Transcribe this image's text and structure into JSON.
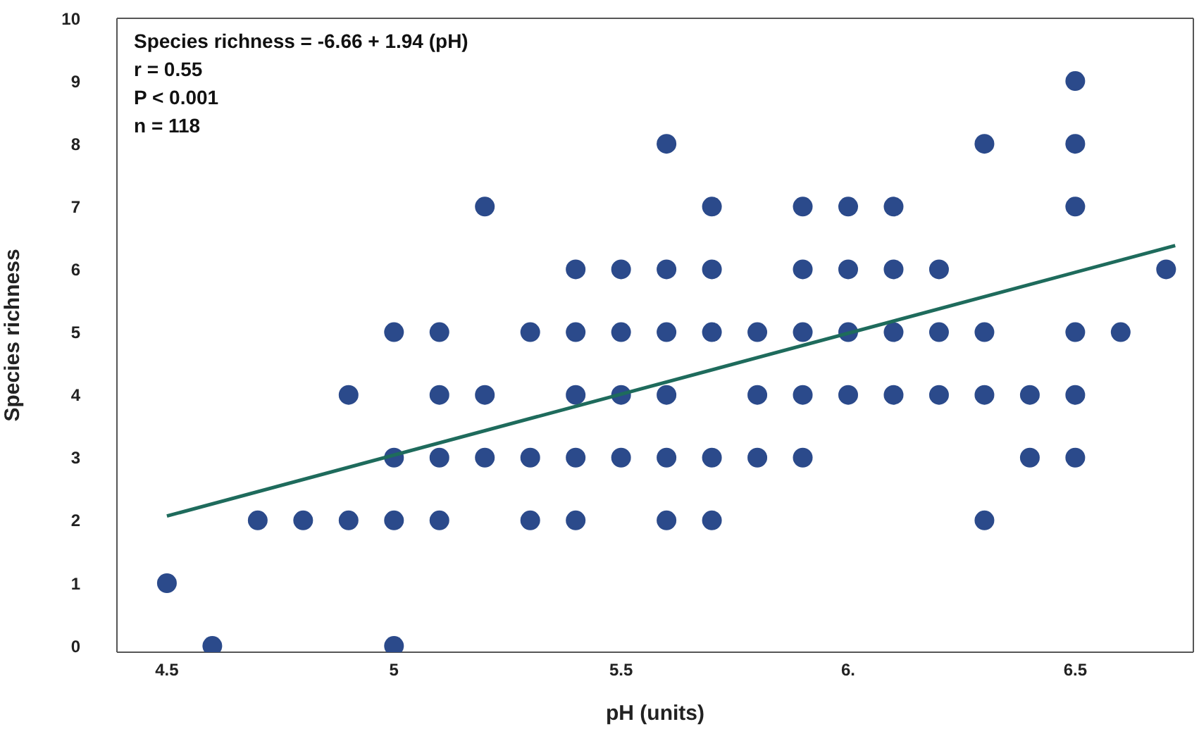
{
  "chart_data": {
    "type": "scatter",
    "xlabel": "pH (units)",
    "ylabel": "Species richness",
    "annotations": [
      "Species richness = -6.66 + 1.94 (pH)",
      "r = 0.55",
      "P < 0.001",
      "n = 118"
    ],
    "xlim": [
      4.39,
      6.76
    ],
    "ylim": [
      -0.1,
      10
    ],
    "xticks": [
      4.5,
      5,
      5.5,
      {
        "value": 6,
        "label": "6."
      },
      6.5
    ],
    "yticks": [
      0,
      1,
      2,
      3,
      4,
      5,
      6,
      7,
      8,
      9,
      10
    ],
    "marker": "circle",
    "series": [
      {
        "color": "#2b4a8b",
        "x": [
          4.5,
          4.6,
          4.7,
          4.8,
          4.9,
          4.9,
          5.0,
          5.0,
          5.0,
          5.0,
          5.1,
          5.1,
          5.1,
          5.1,
          5.2,
          5.2,
          5.2,
          5.3,
          5.3,
          5.3,
          5.4,
          5.4,
          5.4,
          5.4,
          5.4,
          5.5,
          5.5,
          5.5,
          5.5,
          5.6,
          5.6,
          5.6,
          5.6,
          5.6,
          5.6,
          5.7,
          5.7,
          5.7,
          5.7,
          5.7,
          5.8,
          5.8,
          5.8,
          5.9,
          5.9,
          5.9,
          5.9,
          5.9,
          6.0,
          6.0,
          6.0,
          6.0,
          6.1,
          6.1,
          6.1,
          6.1,
          6.2,
          6.2,
          6.2,
          6.3,
          6.3,
          6.3,
          6.3,
          6.4,
          6.4,
          6.5,
          6.5,
          6.5,
          6.5,
          6.5,
          6.5,
          6.6,
          6.7
        ],
        "values": [
          1,
          0,
          2,
          2,
          4,
          2,
          5,
          3,
          2,
          0,
          5,
          4,
          3,
          2,
          7,
          4,
          3,
          5,
          3,
          2,
          6,
          5,
          4,
          3,
          2,
          6,
          5,
          4,
          3,
          8,
          6,
          5,
          4,
          3,
          2,
          7,
          6,
          5,
          3,
          2,
          5,
          4,
          3,
          7,
          6,
          5,
          4,
          3,
          7,
          6,
          5,
          4,
          7,
          6,
          5,
          4,
          6,
          5,
          4,
          8,
          5,
          4,
          2,
          4,
          3,
          9,
          8,
          7,
          5,
          4,
          3,
          5,
          6
        ]
      },
      {
        "type": "line",
        "color": "#1e6b5c",
        "marker": "none",
        "x": [
          4.5,
          6.72
        ],
        "values": [
          2.07,
          6.38
        ]
      }
    ]
  }
}
